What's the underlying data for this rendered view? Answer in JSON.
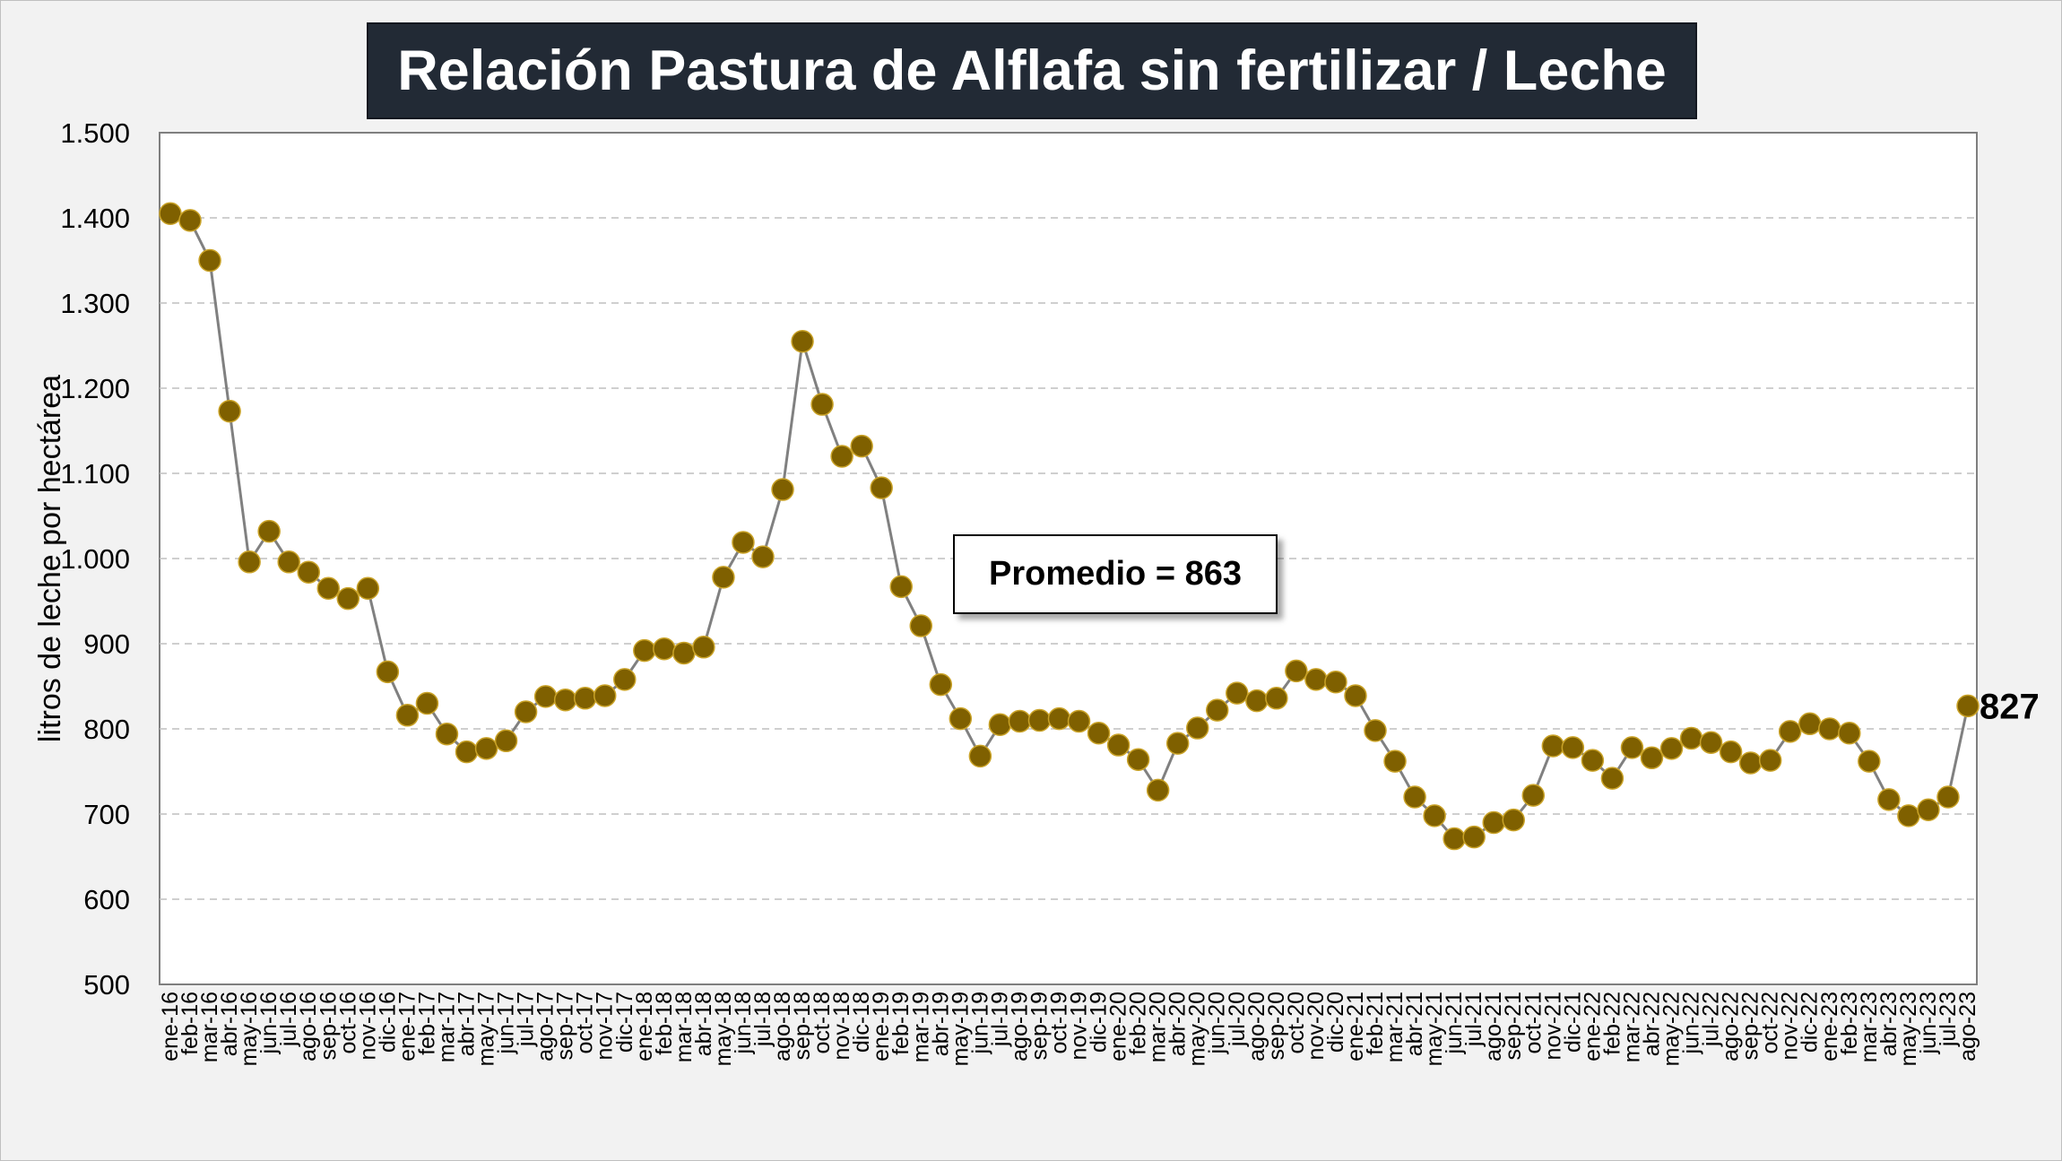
{
  "chart_data": {
    "type": "line",
    "title": "Relación Pastura de Alflafa sin fertilizar / Leche",
    "ylabel": "litros de leche por hectárea",
    "xlabel": "",
    "ylim": [
      500,
      1500
    ],
    "yticks": [
      "500",
      "600",
      "700",
      "800",
      "900",
      "1.000",
      "1.100",
      "1.200",
      "1.300",
      "1.400",
      "1.500"
    ],
    "grid": "horizontal dashed",
    "annotation": "Promedio = 863",
    "last_value_label": "827",
    "line_color": "#808080",
    "marker_color": "#7f6000",
    "categories": [
      "ene-16",
      "feb-16",
      "mar-16",
      "abr-16",
      "may-16",
      "jun-16",
      "jul-16",
      "ago-16",
      "sep-16",
      "oct-16",
      "nov-16",
      "dic-16",
      "ene-17",
      "feb-17",
      "mar-17",
      "abr-17",
      "may-17",
      "jun-17",
      "jul-17",
      "ago-17",
      "sep-17",
      "oct-17",
      "nov-17",
      "dic-17",
      "ene-18",
      "feb-18",
      "mar-18",
      "abr-18",
      "may-18",
      "jun-18",
      "jul-18",
      "ago-18",
      "sep-18",
      "oct-18",
      "nov-18",
      "dic-18",
      "ene-19",
      "feb-19",
      "mar-19",
      "abr-19",
      "may-19",
      "jun-19",
      "jul-19",
      "ago-19",
      "sep-19",
      "oct-19",
      "nov-19",
      "dic-19",
      "ene-20",
      "feb-20",
      "mar-20",
      "abr-20",
      "may-20",
      "jun-20",
      "jul-20",
      "ago-20",
      "sep-20",
      "oct-20",
      "nov-20",
      "dic-20",
      "ene-21",
      "feb-21",
      "mar-21",
      "abr-21",
      "may-21",
      "jun-21",
      "jul-21",
      "ago-21",
      "sep-21",
      "oct-21",
      "nov-21",
      "dic-21",
      "ene-22",
      "feb-22",
      "mar-22",
      "abr-22",
      "may-22",
      "jun-22",
      "jul-22",
      "ago-22",
      "sep-22",
      "oct-22",
      "nov-22",
      "dic-22",
      "ene-23",
      "feb-23",
      "mar-23",
      "abr-23",
      "may-23",
      "jun-23",
      "jul-23",
      "ago-23"
    ],
    "values": [
      1405,
      1397,
      1350,
      1173,
      996,
      1032,
      996,
      984,
      965,
      953,
      965,
      867,
      816,
      830,
      794,
      773,
      777,
      786,
      820,
      838,
      834,
      836,
      839,
      858,
      892,
      894,
      889,
      896,
      978,
      1019,
      1002,
      1081,
      1255,
      1181,
      1120,
      1132,
      1083,
      967,
      921,
      852,
      812,
      768,
      805,
      809,
      810,
      812,
      809,
      795,
      781,
      764,
      728,
      783,
      801,
      822,
      842,
      833,
      836,
      868,
      858,
      855,
      839,
      798,
      762,
      720,
      698,
      671,
      673,
      690,
      693,
      722,
      780,
      778,
      763,
      742,
      778,
      766,
      777,
      789,
      784,
      773,
      760,
      763,
      797,
      806,
      800,
      795,
      762,
      717,
      698,
      705,
      720,
      827
    ]
  }
}
